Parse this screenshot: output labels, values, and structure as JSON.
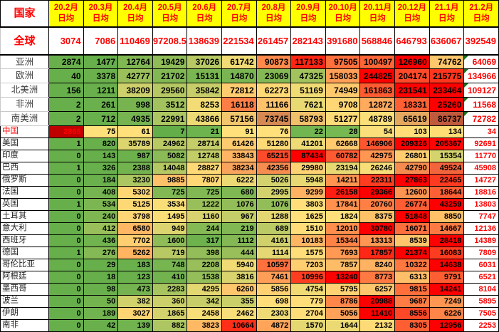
{
  "colors": {
    "header_bg": "#FFFF00",
    "header_text": "#FF0000",
    "grid": "#000000",
    "scale_green": "#66AF4B",
    "scale_yellow": "#FFE07A",
    "scale_red": "#FF0000",
    "global_row_text": "#FF0000",
    "last_column_text": "#FF0000",
    "china_label_text": "#FF0000",
    "china_feb2020_bg": "#C00000",
    "china_feb2020_text": "#FF0000",
    "south_america_max": "#C05A3C",
    "brazil_max": "#F2653C",
    "note_triangle": "#156E21"
  },
  "chart_data": {
    "type": "heatmap",
    "title": "",
    "corner": "国家",
    "col_sublabel": "日均",
    "columns": [
      "20.2月",
      "20.3月",
      "20.4月",
      "20.5月",
      "20.6月",
      "20.7月",
      "20.8月",
      "20.9月",
      "20.10月",
      "20.11月",
      "20.12月",
      "21.1月",
      "21.2月"
    ],
    "legend": "per-row green-yellow-red color scale; last column plain white with red text",
    "rows": [
      {
        "label": "全球",
        "type": "global",
        "values": [
          3074,
          7086,
          110469,
          97208.5,
          138639,
          221534,
          261457,
          282143,
          391680,
          568846,
          646793,
          636067,
          392549
        ]
      },
      {
        "label": "亚洲",
        "type": "continent",
        "note": true,
        "values": [
          2874,
          1477,
          12764,
          19429,
          37026,
          61742,
          90873,
          117133,
          97505,
          100497,
          126960,
          74762,
          64069
        ]
      },
      {
        "label": "欧洲",
        "type": "continent",
        "note": true,
        "mid": "half",
        "values": [
          40,
          3378,
          42777,
          21702,
          15131,
          14870,
          23069,
          47325,
          158033,
          244825,
          204174,
          215775,
          134966
        ]
      },
      {
        "label": "北美洲",
        "type": "continent",
        "note": true,
        "values": [
          156,
          1211,
          38209,
          29560,
          35842,
          72812,
          62273,
          51169,
          74949,
          161863,
          231541,
          233464,
          109127
        ]
      },
      {
        "label": "非洲",
        "type": "continent",
        "note": true,
        "values": [
          2,
          261,
          998,
          3512,
          8253,
          16118,
          11166,
          7621,
          9708,
          12872,
          18331,
          25260,
          11568
        ]
      },
      {
        "label": "南美洲",
        "type": "continent",
        "note": true,
        "max_color": "#C05A3C",
        "values": [
          2,
          712,
          4935,
          22991,
          43866,
          57156,
          73745,
          58793,
          51277,
          48789,
          65619,
          86737,
          72782
        ]
      },
      {
        "label": "中国",
        "type": "country",
        "label_color": "#FF0000",
        "cell_colors": [
          "#C00000",
          "#FFE07A",
          "#FFE07A",
          "#63AE49",
          "#6DB44E",
          "#FFE07A",
          "#FFE07A",
          "#72B651",
          "#76B852",
          "#FBDF7B",
          "#FFDE77",
          "#FFDD75"
        ],
        "cell_text_colors": {
          "0": "#FF0000"
        },
        "values": [
          2868,
          75,
          61,
          7,
          21,
          91,
          76,
          22,
          28,
          54,
          103,
          134,
          34
        ]
      },
      {
        "label": "美国",
        "type": "country",
        "values": [
          1,
          820,
          35789,
          24962,
          28714,
          61426,
          51280,
          41201,
          62668,
          146906,
          209326,
          205367,
          92691
        ]
      },
      {
        "label": "印度",
        "type": "country",
        "values": [
          0,
          143,
          987,
          5082,
          12748,
          33843,
          65215,
          87434,
          60782,
          42975,
          26801,
          15354,
          11770
        ]
      },
      {
        "label": "巴西",
        "type": "country",
        "max_color": "#F2653C",
        "values": [
          1,
          326,
          2388,
          14048,
          28827,
          38234,
          42356,
          29980,
          23194,
          26246,
          42790,
          49524,
          45908
        ]
      },
      {
        "label": "俄罗斯",
        "type": "country",
        "values": [
          0,
          184,
          3230,
          9885,
          7807,
          6222,
          5026,
          5948,
          14211,
          22311,
          27863,
          22465,
          14727
        ]
      },
      {
        "label": "法国",
        "type": "country",
        "values": [
          0,
          408,
          5302,
          725,
          725,
          680,
          2995,
          9299,
          26158,
          29366,
          12600,
          18644,
          18816
        ]
      },
      {
        "label": "英国",
        "type": "country",
        "values": [
          1,
          534,
          5125,
          3534,
          1222,
          1076,
          1076,
          3803,
          17841,
          20760,
          26774,
          43259,
          13803
        ]
      },
      {
        "label": "土耳其",
        "type": "country",
        "values": [
          0,
          240,
          3798,
          1495,
          1160,
          967,
          1288,
          1625,
          1824,
          8375,
          51848,
          8850,
          7747
        ]
      },
      {
        "label": "意大利",
        "type": "country",
        "values": [
          0,
          412,
          6580,
          949,
          244,
          219,
          689,
          1510,
          12010,
          30780,
          16071,
          14667,
          12136
        ]
      },
      {
        "label": "西班牙",
        "type": "country",
        "values": [
          0,
          436,
          7702,
          1600,
          317,
          1112,
          4161,
          10183,
          15344,
          13313,
          8539,
          28418,
          14389
        ]
      },
      {
        "label": "德国",
        "type": "country",
        "values": [
          1,
          276,
          5262,
          719,
          398,
          444,
          1114,
          1575,
          7693,
          17857,
          21374,
          16083,
          7809
        ]
      },
      {
        "label": "哥伦比亚",
        "type": "country",
        "values": [
          0,
          29,
          183,
          748,
          2208,
          5940,
          10597,
          7203,
          7857,
          8240,
          10322,
          14638,
          6031
        ]
      },
      {
        "label": "阿根廷",
        "type": "country",
        "values": [
          0,
          18,
          123,
          410,
          1538,
          3816,
          7461,
          10996,
          13240,
          8773,
          6313,
          9791,
          6521
        ]
      },
      {
        "label": "墨西哥",
        "type": "country",
        "values": [
          0,
          98,
          473,
          2283,
          4295,
          6260,
          5856,
          4754,
          5795,
          6257,
          9815,
          14241,
          8104
        ]
      },
      {
        "label": "波兰",
        "type": "country",
        "values": [
          0,
          50,
          382,
          360,
          342,
          355,
          698,
          779,
          8786,
          20988,
          9687,
          7249,
          5895
        ]
      },
      {
        "label": "伊朗",
        "type": "country",
        "values": [
          0,
          189,
          3027,
          1865,
          2458,
          2462,
          2303,
          2704,
          5056,
          11410,
          8556,
          6226,
          7505
        ]
      },
      {
        "label": "南非",
        "type": "country",
        "values": [
          0,
          42,
          139,
          882,
          3823,
          10664,
          4872,
          1570,
          1644,
          2132,
          8305,
          12956,
          2253
        ]
      }
    ]
  }
}
